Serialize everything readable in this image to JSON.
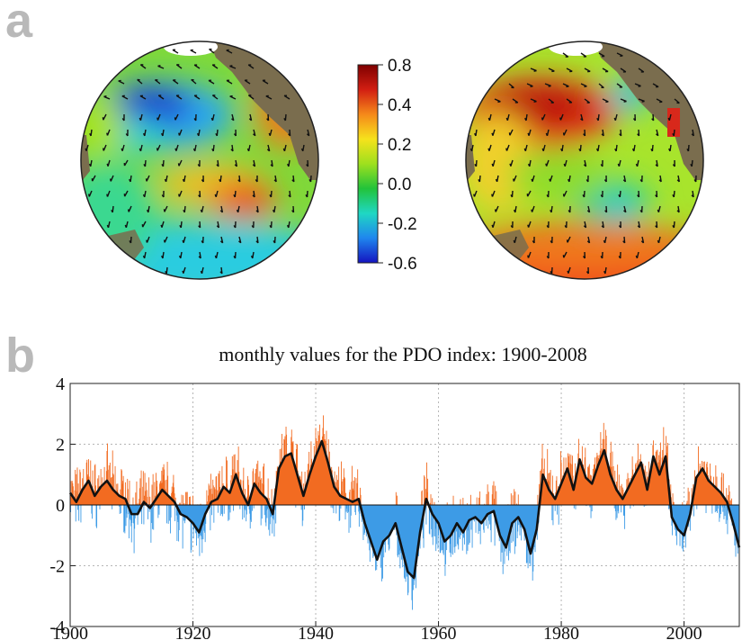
{
  "panels": {
    "a": "a",
    "b": "b"
  },
  "colors": {
    "positive_fill": "#f26b21",
    "negative_fill": "#3d9be6",
    "smooth_line": "#111111",
    "land": "#7a6d4e",
    "globe_edge": "#222222"
  },
  "maps": [
    {
      "name": "left-globe",
      "pattern": "negative-north-pacific"
    },
    {
      "name": "right-globe",
      "pattern": "positive-north-pacific"
    }
  ],
  "colorbar": {
    "ticks": [
      "0.8",
      "0.4",
      "0.2",
      "0.0",
      "-0.2",
      "-0.6"
    ],
    "colors": [
      "#7e0000",
      "#d21e12",
      "#f5891a",
      "#f6e21c",
      "#9ee01e",
      "#22c33a",
      "#1fd7c3",
      "#1f86ee",
      "#1414c0"
    ]
  },
  "chart_data": {
    "type": "area",
    "title": "monthly values for the PDO index: 1900-2008",
    "xlabel": "",
    "ylabel": "",
    "xlim": [
      1900,
      2009
    ],
    "ylim": [
      -4,
      4
    ],
    "x_ticks": [
      1900,
      1920,
      1940,
      1960,
      1980,
      2000
    ],
    "y_ticks": [
      4,
      2,
      0,
      -2,
      -4
    ],
    "grid": true,
    "series": [
      {
        "style": "filled-smoothed-index",
        "x": [
          1900,
          1901,
          1902,
          1903,
          1904,
          1905,
          1906,
          1907,
          1908,
          1909,
          1910,
          1911,
          1912,
          1913,
          1914,
          1915,
          1916,
          1917,
          1918,
          1919,
          1920,
          1921,
          1922,
          1923,
          1924,
          1925,
          1926,
          1927,
          1928,
          1929,
          1930,
          1931,
          1932,
          1933,
          1934,
          1935,
          1936,
          1937,
          1938,
          1939,
          1940,
          1941,
          1942,
          1943,
          1944,
          1945,
          1946,
          1947,
          1948,
          1949,
          1950,
          1951,
          1952,
          1953,
          1954,
          1955,
          1956,
          1957,
          1958,
          1959,
          1960,
          1961,
          1962,
          1963,
          1964,
          1965,
          1966,
          1967,
          1968,
          1969,
          1970,
          1971,
          1972,
          1973,
          1974,
          1975,
          1976,
          1977,
          1978,
          1979,
          1980,
          1981,
          1982,
          1983,
          1984,
          1985,
          1986,
          1987,
          1988,
          1989,
          1990,
          1991,
          1992,
          1993,
          1994,
          1995,
          1996,
          1997,
          1998,
          1999,
          2000,
          2001,
          2002,
          2003,
          2004,
          2005,
          2006,
          2007,
          2008,
          2009
        ],
        "y": [
          0.4,
          0.1,
          0.5,
          0.8,
          0.3,
          0.6,
          0.8,
          0.5,
          0.3,
          0.2,
          -0.3,
          -0.3,
          0.1,
          -0.1,
          0.2,
          0.5,
          0.3,
          0.1,
          -0.3,
          -0.4,
          -0.6,
          -0.9,
          -0.3,
          0.1,
          0.2,
          0.6,
          0.4,
          1.0,
          0.4,
          0.0,
          0.7,
          0.4,
          0.2,
          -0.3,
          1.2,
          1.6,
          1.7,
          1.0,
          0.3,
          1.0,
          1.6,
          2.1,
          1.4,
          0.6,
          0.3,
          0.2,
          0.1,
          0.2,
          -0.6,
          -1.2,
          -1.8,
          -1.2,
          -1.0,
          -0.6,
          -1.4,
          -2.2,
          -2.4,
          -0.9,
          0.2,
          -0.3,
          -0.6,
          -1.2,
          -1.0,
          -0.6,
          -0.9,
          -0.5,
          -0.4,
          -0.6,
          -0.3,
          -0.2,
          -1.0,
          -1.4,
          -0.6,
          -0.4,
          -0.8,
          -1.6,
          -0.8,
          1.0,
          0.5,
          0.2,
          0.7,
          1.2,
          0.5,
          1.5,
          0.9,
          0.7,
          1.3,
          1.8,
          1.0,
          0.5,
          0.2,
          0.6,
          1.0,
          1.4,
          0.5,
          1.6,
          1.0,
          1.6,
          -0.4,
          -0.8,
          -1.0,
          -0.3,
          0.9,
          1.2,
          0.8,
          0.6,
          0.4,
          0.1,
          -0.6,
          -1.4
        ]
      }
    ]
  }
}
